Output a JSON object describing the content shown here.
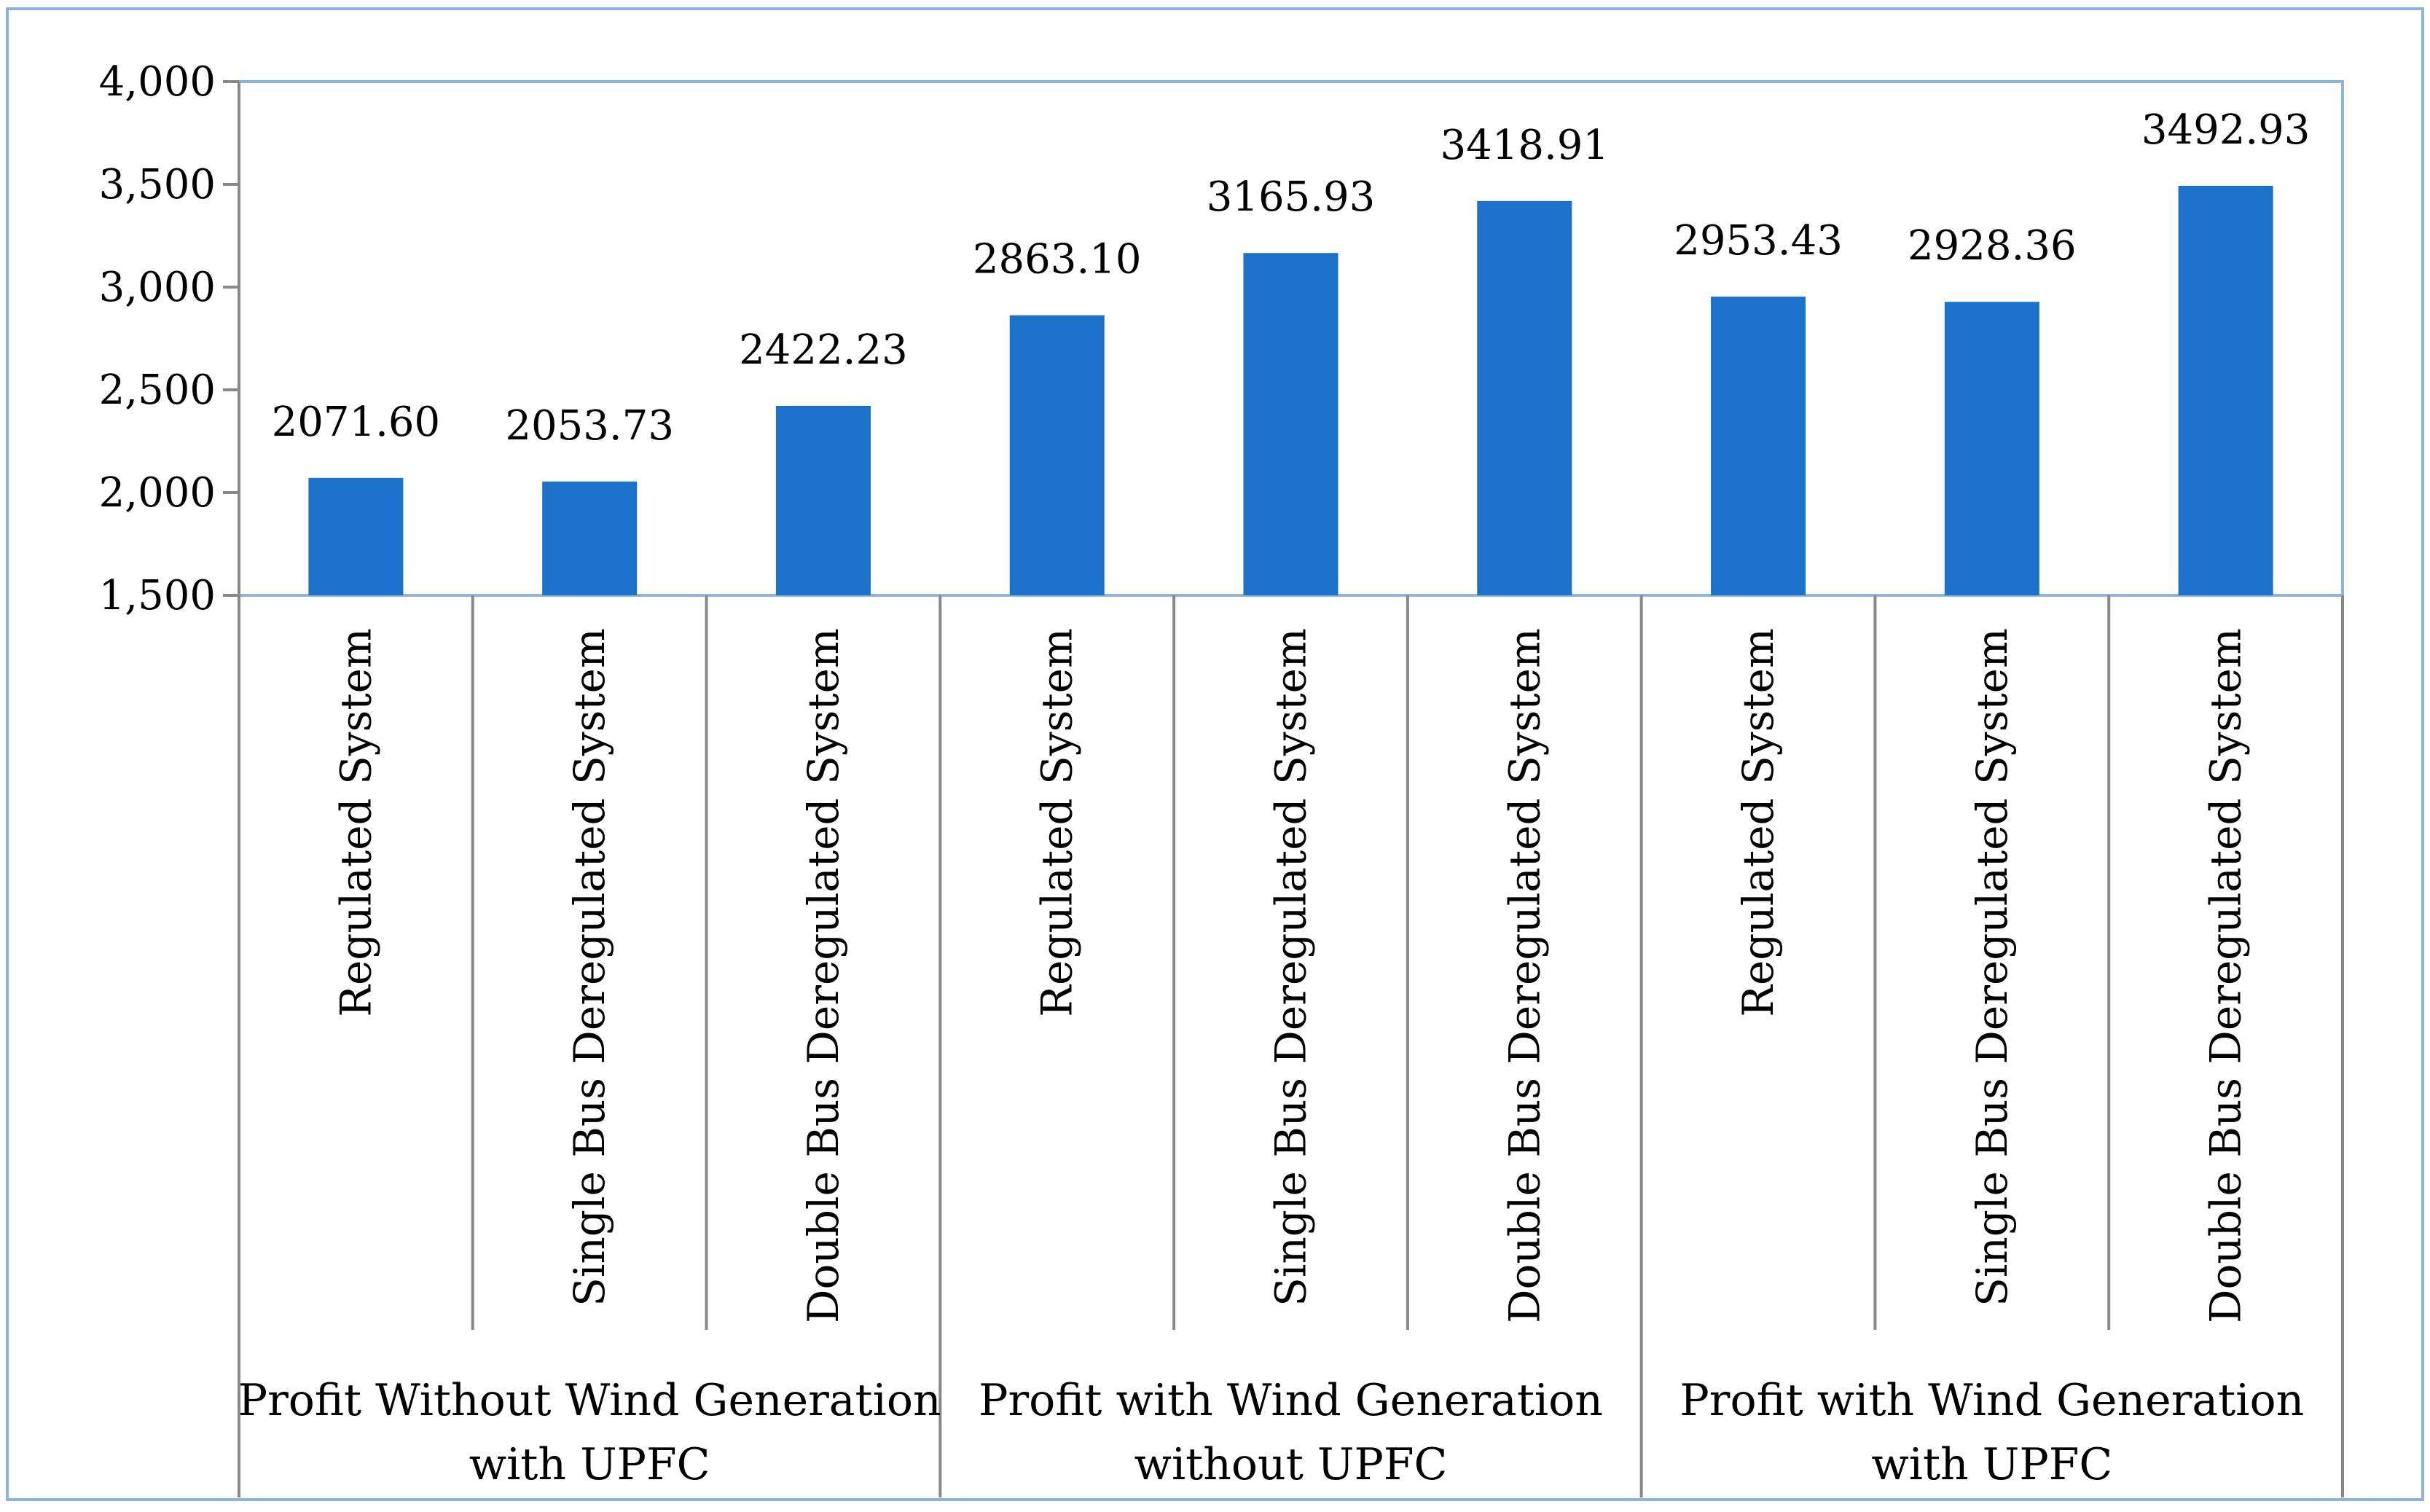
{
  "chart_data": {
    "type": "bar",
    "title": "",
    "xlabel": "",
    "ylabel": "",
    "ylim": [
      1500,
      4000
    ],
    "yticks": [
      1500,
      2000,
      2500,
      3000,
      3500,
      4000
    ],
    "ytick_labels": [
      "1,500",
      "2,000",
      "2,500",
      "3,000",
      "3,500",
      "4,000"
    ],
    "grid": false,
    "legend": "none",
    "groups": [
      {
        "label_line1": "Profit Without Wind Generation",
        "label_line2": "with UPFC",
        "categories": [
          "Regulated System",
          "Single Bus Deregulated System",
          "Double Bus Deregulated System"
        ],
        "values": [
          2071.6,
          2053.73,
          2422.23
        ],
        "value_labels": [
          "2071.60",
          "2053.73",
          "2422.23"
        ]
      },
      {
        "label_line1": "Profit with Wind Generation",
        "label_line2": "without UPFC",
        "categories": [
          "Regulated System",
          "Single Bus Deregulated System",
          "Double Bus Deregulated System"
        ],
        "values": [
          2863.1,
          3165.93,
          3418.91
        ],
        "value_labels": [
          "2863.10",
          "3165.93",
          "3418.91"
        ]
      },
      {
        "label_line1": "Profit with Wind Generation",
        "label_line2": "with UPFC",
        "categories": [
          "Regulated System",
          "Single Bus Deregulated System",
          "Double Bus Deregulated System"
        ],
        "values": [
          2953.43,
          2928.36,
          3492.93
        ],
        "value_labels": [
          "2953.43",
          "2928.36",
          "3492.93"
        ]
      }
    ],
    "colors": {
      "bar": "#1c72c8",
      "plot_border": "#8db3e2",
      "outer_border": "#8db3e2",
      "axis": "#888888"
    }
  }
}
